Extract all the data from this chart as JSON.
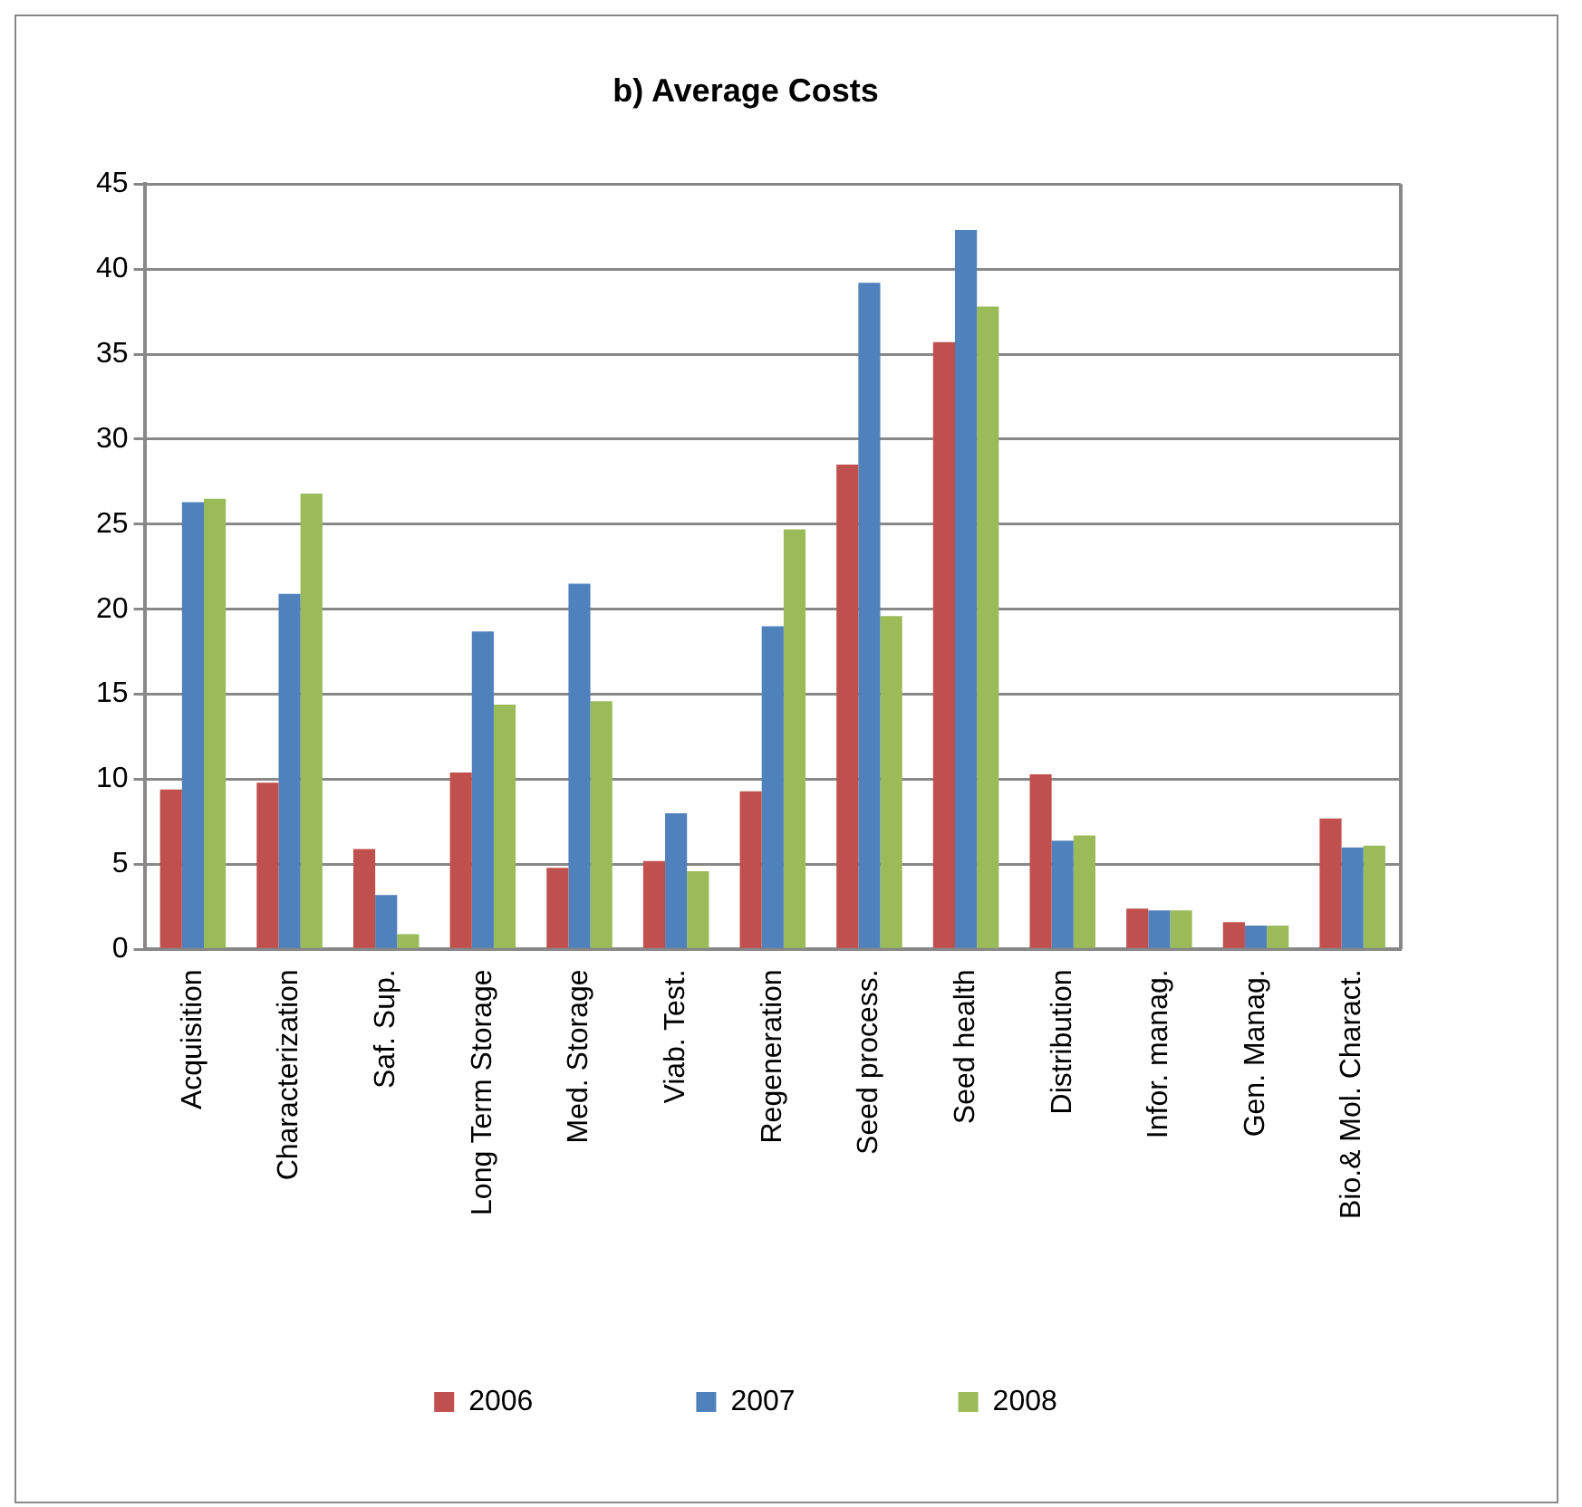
{
  "chart_data": {
    "type": "bar",
    "title": "b) Average Costs",
    "categories": [
      "Acquisition",
      "Characterization",
      "Saf. Sup.",
      "Long Term Storage",
      "Med. Storage",
      "Viab. Test.",
      "Regeneration",
      "Seed process.",
      "Seed health",
      "Distribution",
      "Infor. manag.",
      "Gen. Manag.",
      "Bio.& Mol. Charact."
    ],
    "series": [
      {
        "name": "2006",
        "color": "#c0504d",
        "values": [
          9.4,
          9.8,
          5.9,
          10.4,
          4.8,
          5.2,
          9.3,
          28.5,
          35.7,
          10.3,
          2.4,
          1.6,
          7.7
        ]
      },
      {
        "name": "2007",
        "color": "#4f81bd",
        "values": [
          26.3,
          20.9,
          3.2,
          18.7,
          21.5,
          8.0,
          19.0,
          39.2,
          42.3,
          6.4,
          2.3,
          1.4,
          6.0
        ]
      },
      {
        "name": "2008",
        "color": "#9bbb59",
        "values": [
          26.5,
          26.8,
          0.9,
          14.4,
          14.6,
          4.6,
          24.7,
          19.6,
          37.8,
          6.7,
          2.3,
          1.4,
          6.1
        ]
      }
    ],
    "ylim": [
      0,
      45
    ],
    "yticks": [
      0,
      5,
      10,
      15,
      20,
      25,
      30,
      35,
      40,
      45
    ],
    "grid": "y",
    "legend": "bottom"
  }
}
